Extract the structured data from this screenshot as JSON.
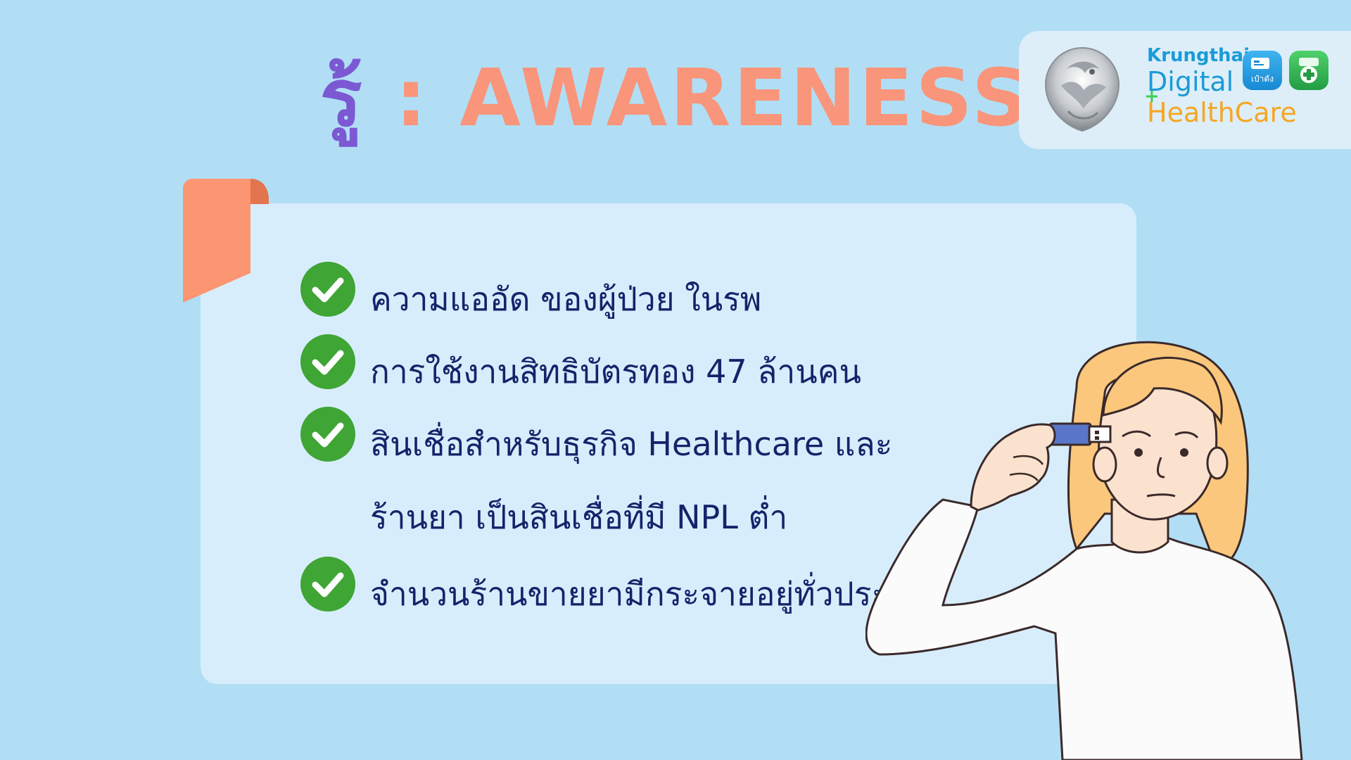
{
  "title": {
    "thai": "รู้",
    "separator": " : ",
    "english": "AWARENESS"
  },
  "logo": {
    "brand": "Krungthai",
    "line1": "Digital",
    "line2": "HealthCare",
    "plus": "+",
    "app_icon_label": "เป๋าตัง"
  },
  "items": [
    {
      "lines": [
        "ความแออัด ของผู้ป่วย ในรพ"
      ],
      "icon": "check-circle-icon"
    },
    {
      "lines": [
        "การใช้งานสิทธิบัตรทอง 47 ล้านคน"
      ],
      "icon": "check-circle-icon"
    },
    {
      "lines": [
        "สินเชื่อสำหรับธุรกิจ Healthcare และ",
        "ร้านยา เป็นสินเชื่อที่มี NPL ต่ำ"
      ],
      "icon": "check-circle-icon"
    },
    {
      "lines": [
        "จำนวนร้านขายยามีกระจายอยู่ทั่วประเทศ"
      ],
      "icon": "check-circle-icon"
    }
  ],
  "colors": {
    "background": "#b1def5",
    "title_thai": "#7c58d3",
    "title_english": "#f9957a",
    "card": "#d8edfc",
    "text": "#14246a",
    "check": "#3fa535",
    "bookmark": "#fb9572"
  }
}
